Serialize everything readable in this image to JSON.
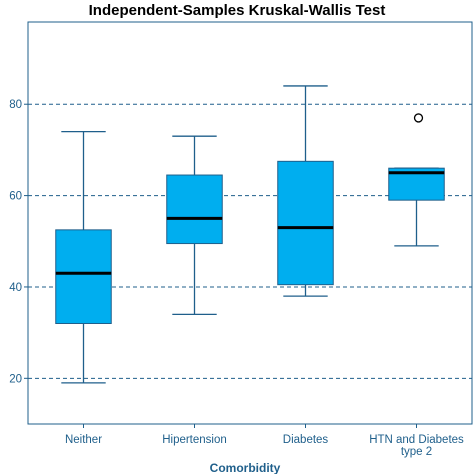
{
  "chart_data": {
    "type": "boxplot",
    "title": "Independent-Samples Kruskal-Wallis Test",
    "xlabel": "Comorbidity",
    "ylabel": "",
    "ylim": [
      10,
      98
    ],
    "yticks": [
      20,
      40,
      60,
      80
    ],
    "grid": "horizontal dashed at y ticks",
    "categories": [
      [
        "Neither"
      ],
      [
        "Hipertension"
      ],
      [
        "Diabetes"
      ],
      [
        "HTN and Diabetes",
        "type 2"
      ]
    ],
    "boxes": [
      {
        "whisker_low": 19,
        "q1": 32,
        "median": 43,
        "q3": 52.5,
        "whisker_high": 74,
        "outliers": []
      },
      {
        "whisker_low": 34,
        "q1": 49.5,
        "median": 55,
        "q3": 64.5,
        "whisker_high": 73,
        "outliers": []
      },
      {
        "whisker_low": 38,
        "q1": 40.5,
        "median": 53,
        "q3": 67.5,
        "whisker_high": 84,
        "outliers": []
      },
      {
        "whisker_low": 49,
        "q1": 59,
        "median": 65,
        "q3": 66,
        "whisker_high": 66,
        "outliers": [
          77
        ]
      }
    ],
    "colors": {
      "box_fill": "#00aeef",
      "box_stroke": "#1f5f8b",
      "median": "#000000",
      "grid": "#1f5f8b",
      "axis": "#1f5f8b",
      "text": "#1f5f8b"
    }
  }
}
